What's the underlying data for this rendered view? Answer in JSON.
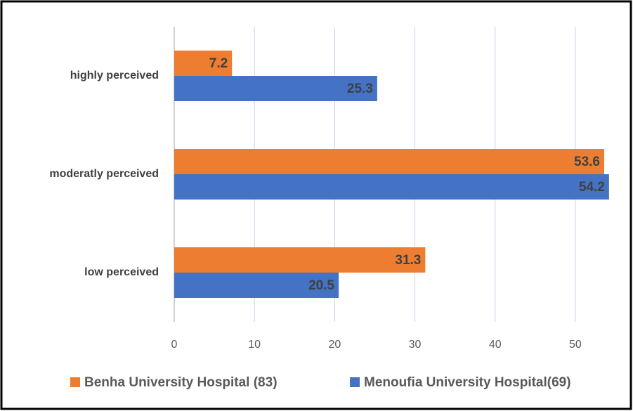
{
  "chart_data": {
    "type": "barh",
    "categories": [
      "highly perceived",
      "moderatly perceived",
      "low perceived"
    ],
    "series": [
      {
        "name": "Benha University Hospital (83)",
        "color": "#ed7d31",
        "values": [
          7.2,
          53.6,
          31.3
        ]
      },
      {
        "name": "Menoufia University Hospital(69)",
        "color": "#4472c4",
        "values": [
          25.3,
          54.2,
          20.5
        ]
      }
    ],
    "xlim": [
      0,
      55
    ],
    "xticks": [
      0,
      10,
      20,
      30,
      40,
      50
    ],
    "grid": true,
    "legend": "bottom"
  }
}
